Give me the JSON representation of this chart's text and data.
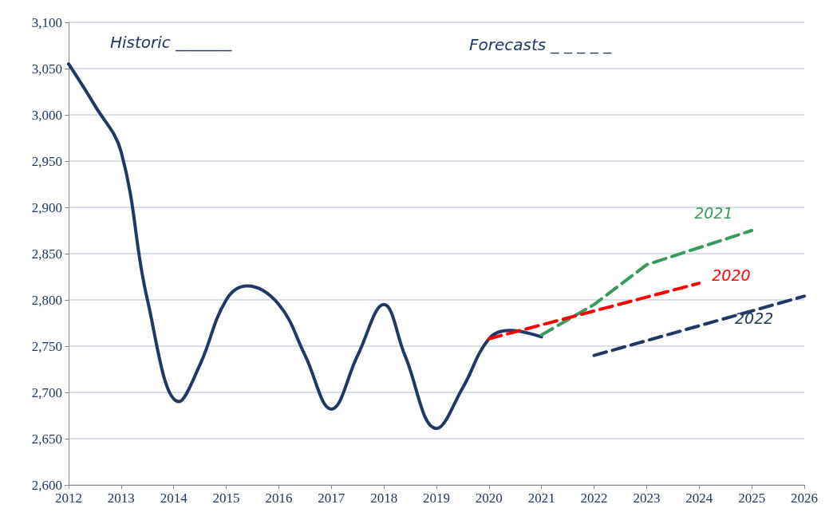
{
  "chart_data": {
    "type": "line",
    "annotations": [
      "Historic _______",
      "Forecasts _ _ _ _ _"
    ],
    "xlim": [
      2012,
      2026
    ],
    "xticks": [
      2012,
      2013,
      2014,
      2015,
      2016,
      2017,
      2018,
      2019,
      2020,
      2021,
      2022,
      2023,
      2024,
      2025,
      2026
    ],
    "ylim": [
      2600,
      3100
    ],
    "yticks": [
      {
        "value": 2600,
        "label": "2,600"
      },
      {
        "value": 2650,
        "label": "2,650"
      },
      {
        "value": 2700,
        "label": "2,700"
      },
      {
        "value": 2750,
        "label": "2,750"
      },
      {
        "value": 2800,
        "label": "2,800"
      },
      {
        "value": 2850,
        "label": "2,850"
      },
      {
        "value": 2900,
        "label": "2,900"
      },
      {
        "value": 2950,
        "label": "2,950"
      },
      {
        "value": 3000,
        "label": "3,000"
      },
      {
        "value": 3050,
        "label": "3,050"
      },
      {
        "value": 3100,
        "label": "3,100"
      }
    ],
    "grid": "y",
    "marker": "none",
    "legend": false,
    "series": [
      {
        "color": "#1f3864",
        "line_style": "solid",
        "x": [
          2012,
          2012.5,
          2013,
          2013.5,
          2014.1,
          2014.5,
          2015,
          2015.4,
          2016,
          2016.5,
          2017,
          2017.5,
          2018,
          2018.4,
          2019,
          2019.5,
          2020,
          2020.4,
          2021
        ],
        "values": [
          3055,
          3010,
          2960,
          2800,
          2690,
          2730,
          2800,
          2815,
          2795,
          2740,
          2682,
          2740,
          2795,
          2740,
          2661,
          2705,
          2758,
          2767,
          2760
        ]
      },
      {
        "name": "2021",
        "color": "#3a9a5e",
        "line_style": "dashed",
        "x": [
          2021,
          2022,
          2023,
          2025
        ],
        "values": [
          2762,
          2795,
          2838,
          2875
        ]
      },
      {
        "name": "2020",
        "color": "#ff0000",
        "line_style": "dashed",
        "x": [
          2020,
          2024
        ],
        "values": [
          2758,
          2818
        ]
      },
      {
        "name": "2022",
        "color": "#1f3864",
        "line_style": "dashed",
        "x": [
          2022,
          2026
        ],
        "values": [
          2740,
          2804
        ]
      }
    ]
  }
}
